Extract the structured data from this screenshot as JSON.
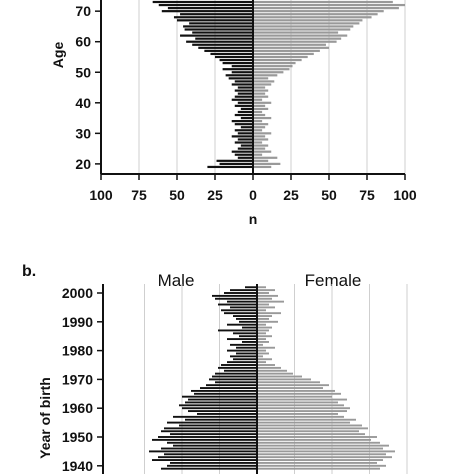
{
  "chart_data": [
    {
      "type": "bar",
      "orientation": "horizontal-pyramid",
      "panel_label": "",
      "xlabel": "n",
      "ylabel": "Age",
      "x_ticks": [
        "100",
        "75",
        "50",
        "25",
        "0",
        "25",
        "50",
        "75",
        "100"
      ],
      "xlim": [
        -100,
        100
      ],
      "y_ticks": [
        "20",
        "30",
        "40",
        "50",
        "60",
        "70"
      ],
      "ylim": [
        18,
        73
      ],
      "grid": "vertical",
      "series": [
        {
          "color": "#111111",
          "x": [
            19,
            20,
            21,
            22,
            23,
            24,
            25,
            26,
            27,
            28,
            29,
            30,
            31,
            32,
            33,
            34,
            35,
            36,
            37,
            38,
            39,
            40,
            41,
            42,
            43,
            44,
            45,
            46,
            47,
            48,
            49,
            50,
            51,
            52,
            53,
            54,
            55,
            56,
            57,
            58,
            59,
            60,
            61,
            62,
            63,
            64,
            65,
            66,
            67,
            68,
            69,
            70,
            71,
            72,
            73
          ],
          "values": [
            30,
            22,
            24,
            10,
            12,
            14,
            10,
            8,
            12,
            10,
            14,
            10,
            12,
            8,
            12,
            14,
            8,
            12,
            10,
            8,
            12,
            10,
            14,
            12,
            10,
            12,
            10,
            14,
            12,
            16,
            18,
            14,
            20,
            14,
            20,
            22,
            25,
            28,
            32,
            36,
            40,
            44,
            38,
            48,
            40,
            45,
            46,
            42,
            50,
            52,
            48,
            60,
            56,
            62,
            66
          ]
        },
        {
          "color": "#999999",
          "x": [
            19,
            20,
            21,
            22,
            23,
            24,
            25,
            26,
            27,
            28,
            29,
            30,
            31,
            32,
            33,
            34,
            35,
            36,
            37,
            38,
            39,
            40,
            41,
            42,
            43,
            44,
            45,
            46,
            47,
            48,
            49,
            50,
            51,
            52,
            53,
            54,
            55,
            56,
            57,
            58,
            59,
            60,
            61,
            62,
            63,
            64,
            65,
            66,
            67,
            68,
            69,
            70,
            71,
            72,
            73
          ],
          "values": [
            12,
            18,
            10,
            16,
            6,
            12,
            8,
            10,
            6,
            10,
            8,
            12,
            6,
            8,
            10,
            6,
            12,
            8,
            6,
            10,
            8,
            12,
            6,
            10,
            8,
            10,
            8,
            12,
            14,
            10,
            16,
            20,
            24,
            26,
            28,
            32,
            36,
            40,
            44,
            50,
            48,
            55,
            58,
            62,
            56,
            64,
            66,
            70,
            72,
            78,
            82,
            86,
            96,
            100,
            92
          ]
        }
      ]
    },
    {
      "type": "bar",
      "orientation": "horizontal-pyramid",
      "panel_label": "b.",
      "ylabel": "Year of birth",
      "group_labels": [
        "Male",
        "Female"
      ],
      "y_ticks": [
        "2000",
        "1990",
        "1980",
        "1970",
        "1960",
        "1950",
        "1940"
      ],
      "ylim": [
        1939,
        2003
      ],
      "xlim": [
        -100,
        100
      ],
      "grid": "vertical",
      "series": [
        {
          "color": "#111111",
          "x": [
            2002,
            2001,
            2000,
            1999,
            1998,
            1997,
            1996,
            1995,
            1994,
            1993,
            1992,
            1991,
            1990,
            1989,
            1988,
            1987,
            1986,
            1985,
            1984,
            1983,
            1982,
            1981,
            1980,
            1979,
            1978,
            1977,
            1976,
            1975,
            1974,
            1973,
            1972,
            1971,
            1970,
            1969,
            1968,
            1967,
            1966,
            1965,
            1964,
            1963,
            1962,
            1961,
            1960,
            1959,
            1958,
            1957,
            1956,
            1955,
            1954,
            1953,
            1952,
            1951,
            1950,
            1949,
            1948,
            1947,
            1946,
            1945,
            1944,
            1943,
            1942,
            1941,
            1940,
            1939
          ],
          "values": [
            8,
            18,
            22,
            30,
            28,
            20,
            26,
            18,
            24,
            22,
            16,
            14,
            12,
            20,
            10,
            26,
            16,
            12,
            20,
            10,
            18,
            14,
            20,
            14,
            18,
            16,
            20,
            24,
            26,
            22,
            28,
            30,
            32,
            28,
            34,
            38,
            44,
            42,
            50,
            46,
            48,
            52,
            50,
            46,
            40,
            56,
            48,
            60,
            52,
            62,
            64,
            58,
            66,
            70,
            60,
            56,
            64,
            72,
            62,
            66,
            70,
            58,
            60,
            64
          ]
        },
        {
          "color": "#999999",
          "x": [
            2002,
            2001,
            2000,
            1999,
            1998,
            1997,
            1996,
            1995,
            1994,
            1993,
            1992,
            1991,
            1990,
            1989,
            1988,
            1987,
            1986,
            1985,
            1984,
            1983,
            1982,
            1981,
            1980,
            1979,
            1978,
            1977,
            1976,
            1975,
            1974,
            1973,
            1972,
            1971,
            1970,
            1969,
            1968,
            1967,
            1966,
            1965,
            1964,
            1963,
            1962,
            1961,
            1960,
            1959,
            1958,
            1957,
            1956,
            1955,
            1954,
            1953,
            1952,
            1951,
            1950,
            1949,
            1948,
            1947,
            1946,
            1945,
            1944,
            1943,
            1942,
            1941,
            1940,
            1939
          ],
          "values": [
            6,
            12,
            8,
            14,
            10,
            18,
            8,
            12,
            6,
            16,
            10,
            8,
            14,
            6,
            10,
            8,
            6,
            10,
            6,
            8,
            4,
            12,
            6,
            8,
            4,
            10,
            6,
            12,
            16,
            20,
            24,
            30,
            36,
            42,
            48,
            44,
            52,
            56,
            50,
            60,
            54,
            58,
            62,
            60,
            54,
            58,
            66,
            62,
            70,
            74,
            68,
            72,
            80,
            76,
            82,
            88,
            84,
            92,
            86,
            90,
            84,
            80,
            86,
            82
          ]
        }
      ]
    }
  ]
}
